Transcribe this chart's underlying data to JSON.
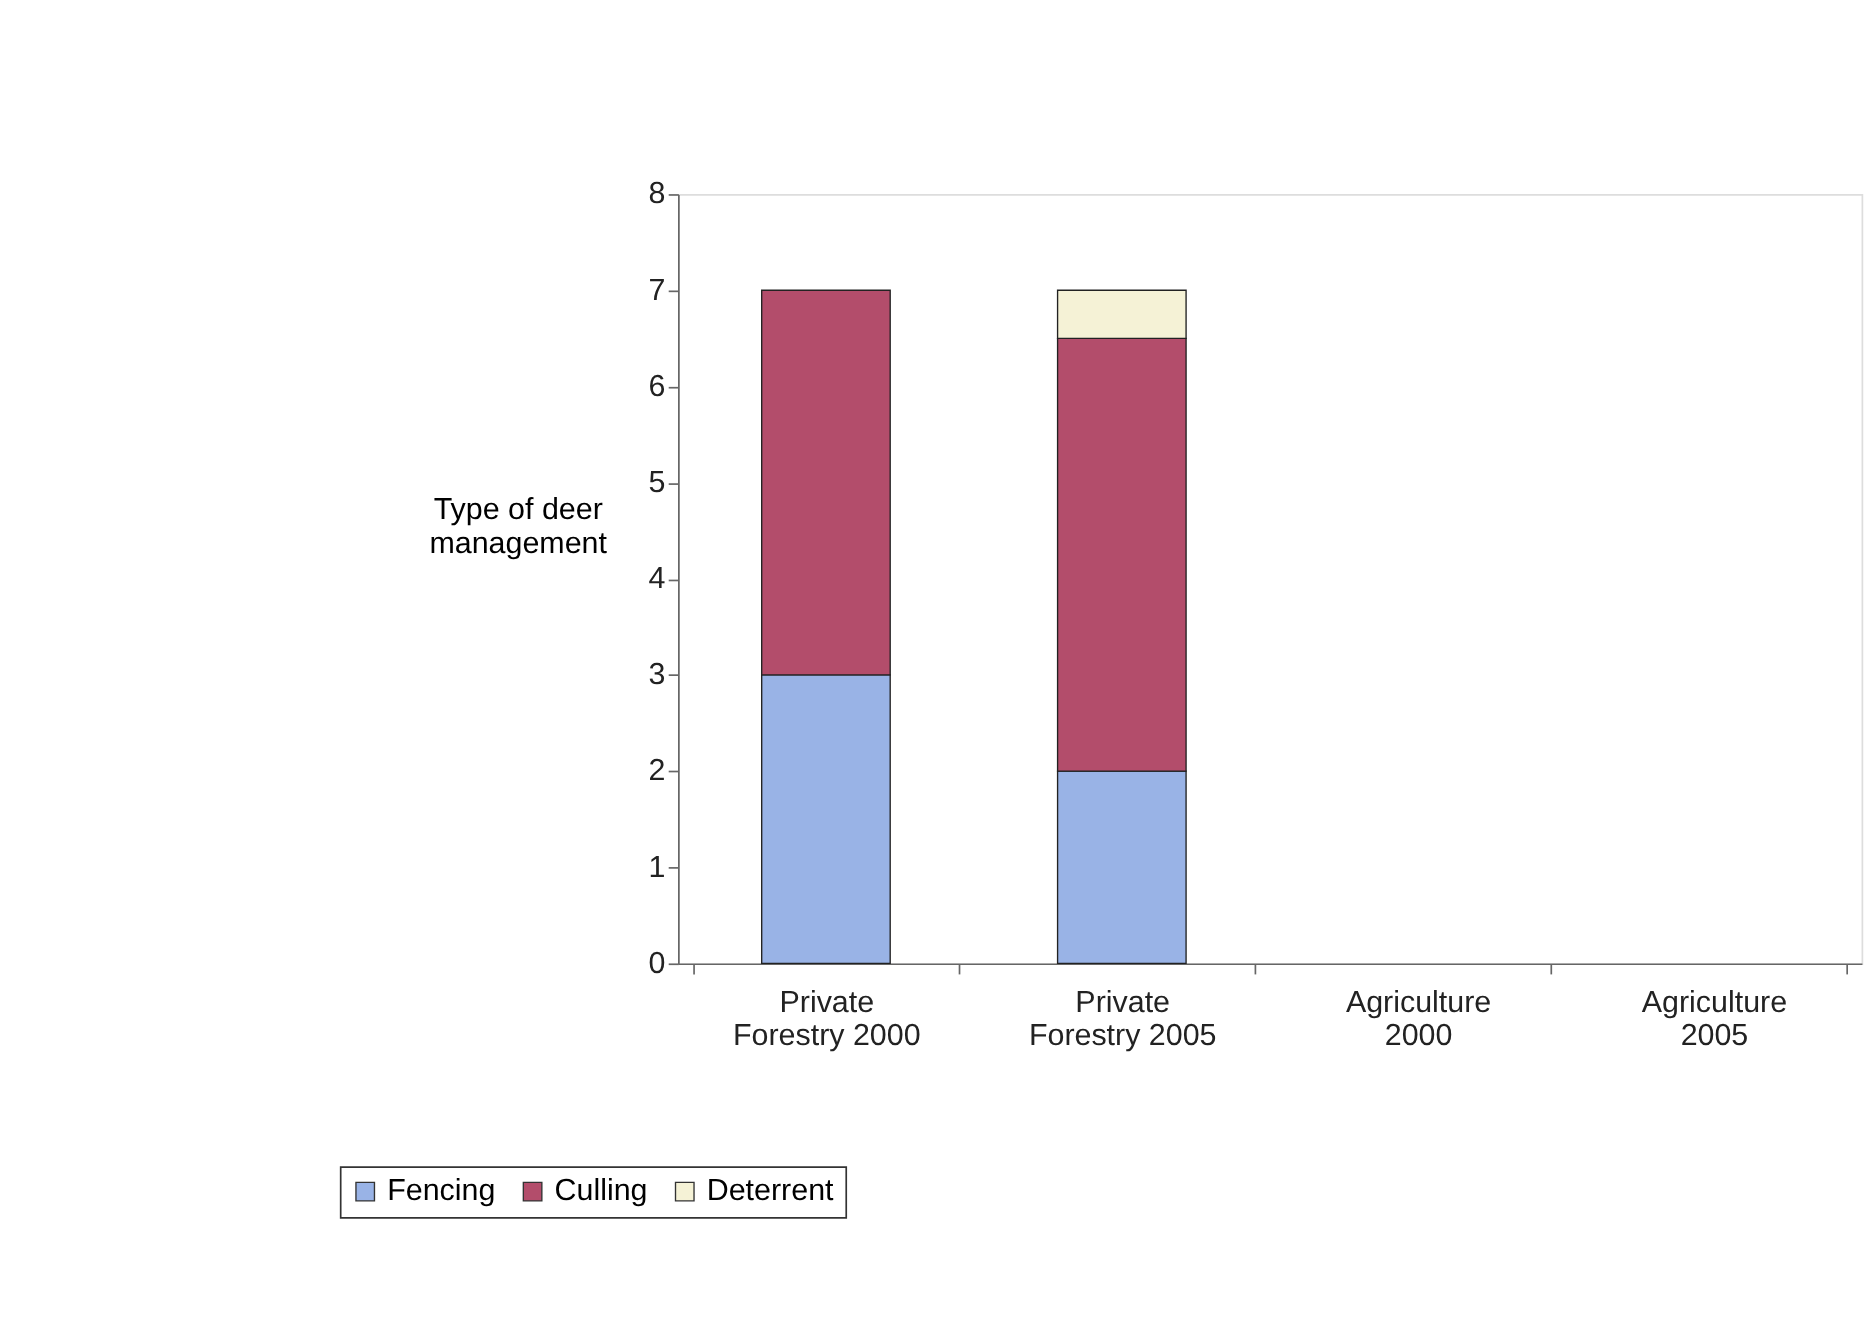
{
  "chart_data": {
    "type": "bar",
    "stacked": true,
    "ylabel": "Type of deer management",
    "categories": [
      "Private Forestry 2000",
      "Private Forestry 2005",
      "Agriculture 2000",
      "Agriculture 2005"
    ],
    "series": [
      {
        "name": "Fencing",
        "color": "#99b3e6",
        "values": [
          3,
          2,
          null,
          null
        ]
      },
      {
        "name": "Culling",
        "color": "#b34d6b",
        "values": [
          4,
          4.5,
          null,
          null
        ]
      },
      {
        "name": "Deterrent",
        "color": "#f5f2d6",
        "values": [
          null,
          0.5,
          null,
          null
        ]
      }
    ],
    "ylim": [
      0,
      8
    ],
    "yticks": [
      0,
      1,
      2,
      3,
      4,
      5,
      6,
      7,
      8
    ],
    "grid": false,
    "legend": "bottom left"
  }
}
